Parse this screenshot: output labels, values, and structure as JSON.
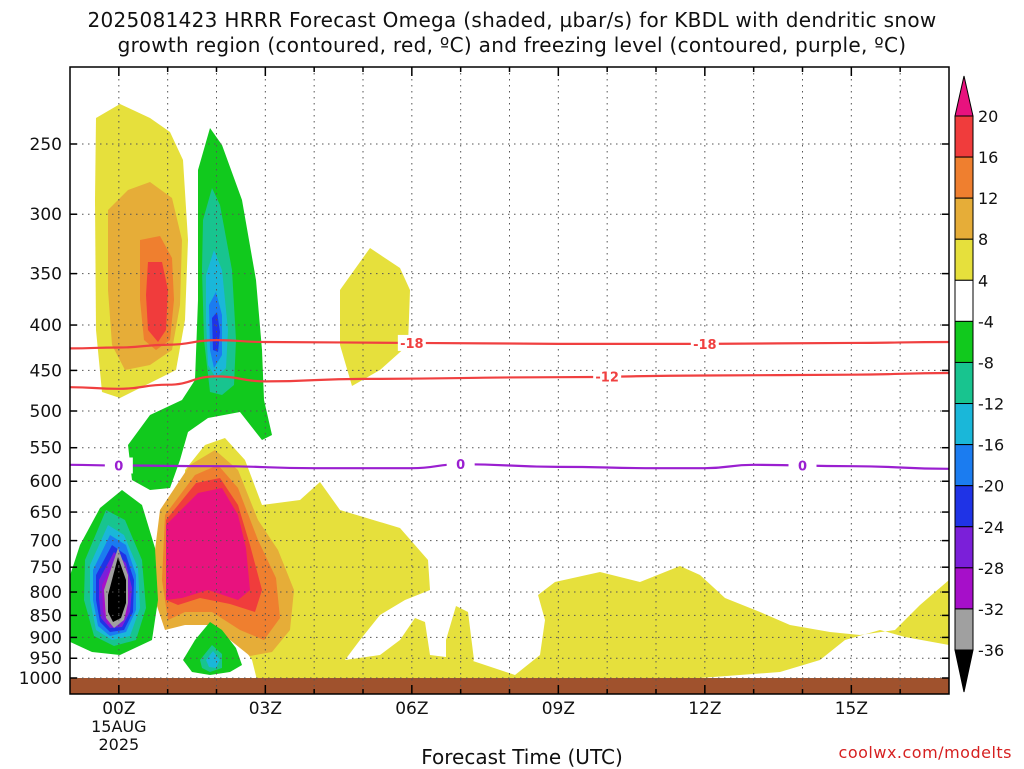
{
  "title": {
    "line1": "2025081423 HRRR Forecast Omega (shaded, µbar/s) for KBDL with dendritic snow",
    "line2": "growth region (contoured, red, ºC) and freezing level (contoured, purple, ºC)"
  },
  "credit": "coolwx.com/modelts",
  "chart_data": {
    "type": "contour",
    "title": "2025081423 HRRR Forecast Omega (shaded, µbar/s) for KBDL with dendritic snow growth region (contoured, red, ºC) and freezing level (contoured, purple, ºC)",
    "xlabel": "Forecast Time (UTC)",
    "ylabel": "",
    "x_ticks": [
      "00Z",
      "03Z",
      "06Z",
      "09Z",
      "12Z",
      "15Z"
    ],
    "x_tick_hours": [
      0,
      3,
      6,
      9,
      12,
      15
    ],
    "x_sublabels": [
      "15AUG",
      "2025"
    ],
    "xlim": [
      -1,
      17
    ],
    "y_ticks": [
      250,
      300,
      350,
      400,
      450,
      500,
      550,
      600,
      650,
      700,
      750,
      800,
      850,
      900,
      950,
      1000
    ],
    "ylim_hpa": [
      1010,
      190
    ],
    "y_scale": "log",
    "grid": true,
    "colorbar": {
      "labels": [
        "20",
        "16",
        "12",
        "8",
        "4",
        "-4",
        "-8",
        "-12",
        "-16",
        "-20",
        "-24",
        "-28",
        "-32",
        "-36"
      ],
      "bands": [
        {
          "range": [
            16,
            20
          ],
          "color": "#f03c3c"
        },
        {
          "range": [
            12,
            16
          ],
          "color": "#ef7f2f"
        },
        {
          "range": [
            8,
            12
          ],
          "color": "#e6ad38"
        },
        {
          "range": [
            4,
            8
          ],
          "color": "#e6e03c"
        },
        {
          "range": [
            -4,
            4
          ],
          "color": "#ffffff"
        },
        {
          "range": [
            -8,
            -4
          ],
          "color": "#11c91d"
        },
        {
          "range": [
            -12,
            -8
          ],
          "color": "#18c48f"
        },
        {
          "range": [
            -16,
            -12
          ],
          "color": "#1ab7d9"
        },
        {
          "range": [
            -20,
            -16
          ],
          "color": "#1b7cf0"
        },
        {
          "range": [
            -24,
            -20
          ],
          "color": "#1f33e6"
        },
        {
          "range": [
            -28,
            -24
          ],
          "color": "#7b1fd9"
        },
        {
          "range": [
            -32,
            -28
          ],
          "color": "#a60fc9"
        },
        {
          "range": [
            -36,
            -32
          ],
          "color": "#a0a0a0"
        }
      ],
      "top_arrow_color": "#e8127e",
      "bottom_arrow_color": "#000000"
    },
    "contours": [
      {
        "name": "-18",
        "color": "#f04040",
        "labels": [
          "-18",
          "-18"
        ],
        "label_x": [
          6,
          12
        ],
        "points": [
          [
            -1,
            425
          ],
          [
            0,
            424
          ],
          [
            1,
            421
          ],
          [
            2,
            416
          ],
          [
            3,
            418
          ],
          [
            6,
            419
          ],
          [
            9,
            420
          ],
          [
            12,
            420
          ],
          [
            15,
            419
          ],
          [
            17,
            418
          ]
        ]
      },
      {
        "name": "-12",
        "color": "#f04040",
        "labels": [
          "-12"
        ],
        "label_x": [
          10
        ],
        "points": [
          [
            -1,
            470
          ],
          [
            0,
            472
          ],
          [
            1,
            467
          ],
          [
            2,
            457
          ],
          [
            3,
            463
          ],
          [
            5,
            460
          ],
          [
            9,
            458
          ],
          [
            12,
            456
          ],
          [
            15,
            455
          ],
          [
            17,
            453
          ]
        ]
      },
      {
        "name": "0",
        "color": "#9a1fd0",
        "labels": [
          "0",
          "0",
          "0"
        ],
        "label_x": [
          0,
          7,
          14
        ],
        "points": [
          [
            -1,
            575
          ],
          [
            0,
            576
          ],
          [
            2,
            577
          ],
          [
            4,
            580
          ],
          [
            6,
            580
          ],
          [
            7,
            574
          ],
          [
            9,
            578
          ],
          [
            11,
            580
          ],
          [
            12,
            580
          ],
          [
            13,
            575
          ],
          [
            15,
            577
          ],
          [
            17,
            581
          ]
        ]
      }
    ],
    "surface_band_color": "#a0522d"
  }
}
